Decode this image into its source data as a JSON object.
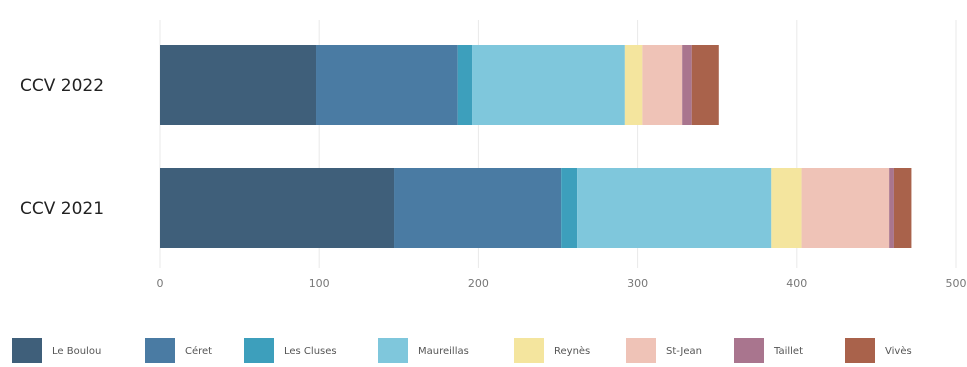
{
  "chart_data": {
    "type": "bar",
    "orientation": "horizontal",
    "stacked": true,
    "categories": [
      "CCV 2022",
      "CCV 2021"
    ],
    "series": [
      {
        "name": "Le Boulou",
        "values": [
          98,
          147
        ],
        "color": "#3f5f7a"
      },
      {
        "name": "Céret",
        "values": [
          89,
          105
        ],
        "color": "#4a7ba3"
      },
      {
        "name": "Les Cluses",
        "values": [
          9,
          10
        ],
        "color": "#3d9fbc"
      },
      {
        "name": "Maureillas",
        "values": [
          96,
          122
        ],
        "color": "#7fc7dc"
      },
      {
        "name": "Reynès",
        "values": [
          11,
          19
        ],
        "color": "#f4e59e"
      },
      {
        "name": "St-Jean",
        "values": [
          25,
          55
        ],
        "color": "#efc3b7"
      },
      {
        "name": "Taillet",
        "values": [
          6,
          3
        ],
        "color": "#a9758e"
      },
      {
        "name": "Vivès",
        "values": [
          17,
          11
        ],
        "color": "#a9624b"
      }
    ],
    "xlim": [
      0,
      500
    ],
    "xticks": [
      0,
      100,
      200,
      300,
      400,
      500
    ],
    "grid": true,
    "legend": "bottom"
  }
}
